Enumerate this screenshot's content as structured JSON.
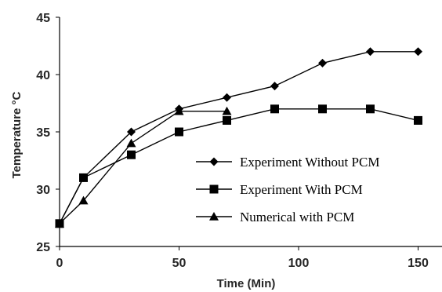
{
  "chart_data": {
    "type": "line",
    "xlabel": "Time (Min)",
    "ylabel": "Temperature °C",
    "xlim": [
      0,
      160
    ],
    "ylim": [
      25,
      45
    ],
    "xticks": [
      0,
      50,
      100,
      150
    ],
    "yticks": [
      25,
      30,
      35,
      40,
      45
    ],
    "grid": false,
    "legend_position": "bottom-right",
    "series": [
      {
        "name": "Experiment Without PCM",
        "marker": "diamond",
        "color": "#000000",
        "x": [
          0,
          10,
          30,
          50,
          70,
          90,
          110,
          130,
          150
        ],
        "y": [
          27,
          31,
          35,
          37,
          38,
          39,
          41,
          42,
          42
        ]
      },
      {
        "name": "Experiment With PCM",
        "marker": "square",
        "color": "#000000",
        "x": [
          0,
          10,
          30,
          50,
          70,
          90,
          110,
          130,
          150
        ],
        "y": [
          27,
          31,
          33,
          35,
          36,
          37,
          37,
          37,
          36
        ]
      },
      {
        "name": "Numerical with PCM",
        "marker": "triangle",
        "color": "#000000",
        "x": [
          0,
          10,
          30,
          50,
          70
        ],
        "y": [
          27,
          29,
          34,
          36.8,
          36.8
        ]
      }
    ]
  }
}
